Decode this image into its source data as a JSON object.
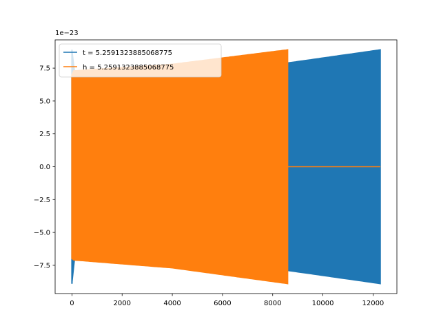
{
  "chart_data": {
    "type": "line",
    "title": "",
    "xlabel": "",
    "ylabel": "",
    "y_offset_text": "1e−23",
    "xlim": [
      -670,
      12950
    ],
    "ylim": [
      -9.65,
      9.65
    ],
    "xticks": [
      0,
      2000,
      4000,
      6000,
      8000,
      10000,
      12000
    ],
    "xtick_labels": [
      "0",
      "2000",
      "4000",
      "6000",
      "8000",
      "10000",
      "12000"
    ],
    "yticks": [
      -7.5,
      -5.0,
      -2.5,
      0.0,
      2.5,
      5.0,
      7.5
    ],
    "ytick_labels": [
      "−7.5",
      "−5.0",
      "−2.5",
      "0.0",
      "2.5",
      "5.0",
      "7.5"
    ],
    "grid": false,
    "legend_position": "top-left",
    "series": [
      {
        "name": "t = 5.2591323885068775",
        "color": "#1f77b4",
        "style": "dense-oscillation",
        "x": [
          0,
          60,
          8600,
          12290
        ],
        "upper": [
          8.9,
          7.3,
          7.9,
          8.9
        ],
        "lower": [
          -8.9,
          -7.1,
          -7.9,
          -8.9
        ],
        "end_x": 12290
      },
      {
        "name": "h = 5.2591323885068775",
        "color": "#ff7f0e",
        "style": "dense-oscillation",
        "x": [
          0,
          60,
          4000,
          8600
        ],
        "upper": [
          7.0,
          7.3,
          7.8,
          8.9
        ],
        "lower": [
          -7.0,
          -7.1,
          -7.7,
          -8.9
        ],
        "end_x": 8600,
        "tail": {
          "x": [
            8600,
            12290
          ],
          "y": 0.0
        }
      }
    ]
  }
}
